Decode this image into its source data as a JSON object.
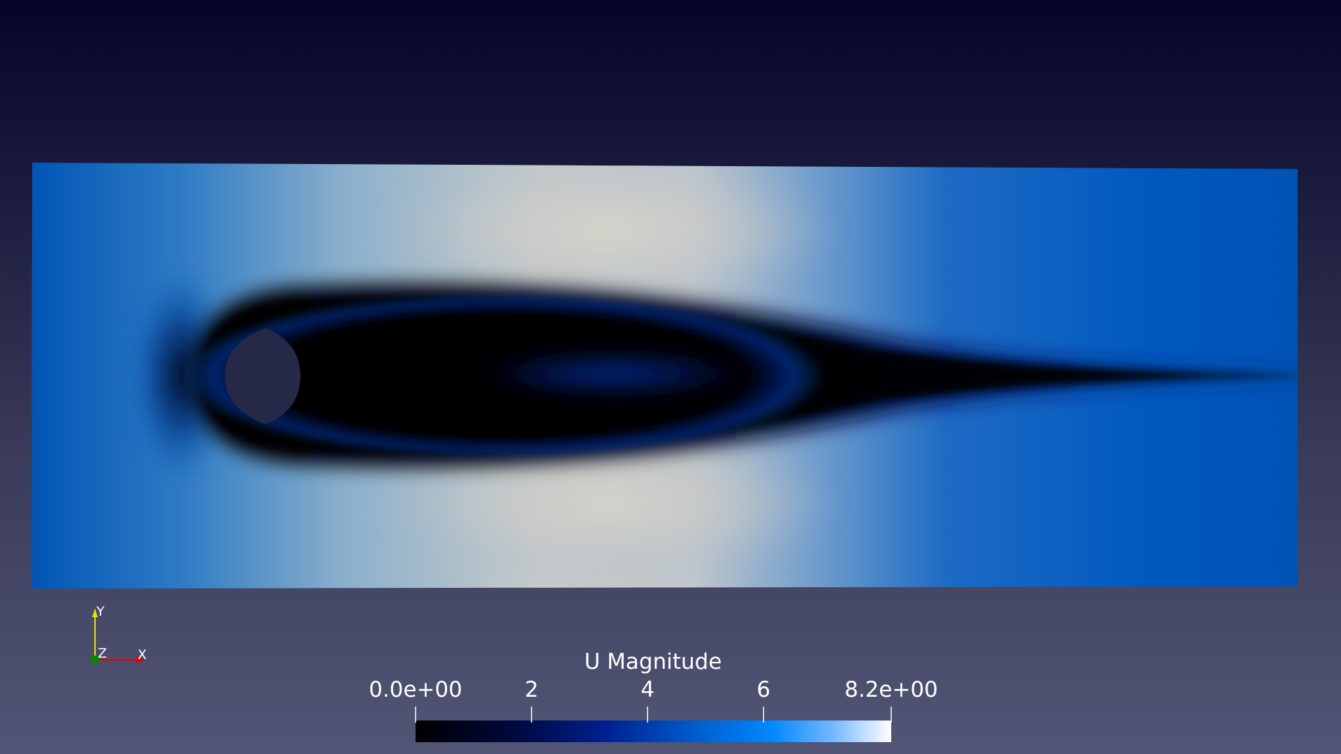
{
  "render": {
    "domain_colormap": [
      {
        "t": 0.0,
        "color": "#000000"
      },
      {
        "t": 0.2,
        "color": "#000a4a"
      },
      {
        "t": 0.35,
        "color": "#02208f"
      },
      {
        "t": 0.55,
        "color": "#0057c0"
      },
      {
        "t": 0.72,
        "color": "#7fa6d0"
      },
      {
        "t": 0.86,
        "color": "#c9cbc9"
      },
      {
        "t": 1.0,
        "color": "#d6d4cc"
      }
    ],
    "obstacle_color": "#262847",
    "background_top": "#050528",
    "background_bottom": "#525575"
  },
  "colorbar": {
    "title": "U Magnitude",
    "min_label": "0.0e+00",
    "max_label": "8.2e+00",
    "range": [
      0,
      8.2
    ],
    "ticks": [
      {
        "value": 0,
        "label": "0.0e+00"
      },
      {
        "value": 2,
        "label": "2"
      },
      {
        "value": 4,
        "label": "4"
      },
      {
        "value": 6,
        "label": "6"
      },
      {
        "value": 8.2,
        "label": "8.2e+00"
      }
    ],
    "colors": [
      {
        "t": 0.0,
        "color": "#000000"
      },
      {
        "t": 0.2,
        "color": "#00083b"
      },
      {
        "t": 0.4,
        "color": "#00208f"
      },
      {
        "t": 0.62,
        "color": "#0066d6"
      },
      {
        "t": 0.75,
        "color": "#0088ff"
      },
      {
        "t": 0.88,
        "color": "#78b9ff"
      },
      {
        "t": 1.0,
        "color": "#ffffff"
      }
    ]
  },
  "orientation_axes": {
    "y_label": "Y",
    "z_label": "Z",
    "x_label": "X",
    "y_color": "#e6e600",
    "x_color": "#e60000",
    "z_color": "#00a000"
  }
}
